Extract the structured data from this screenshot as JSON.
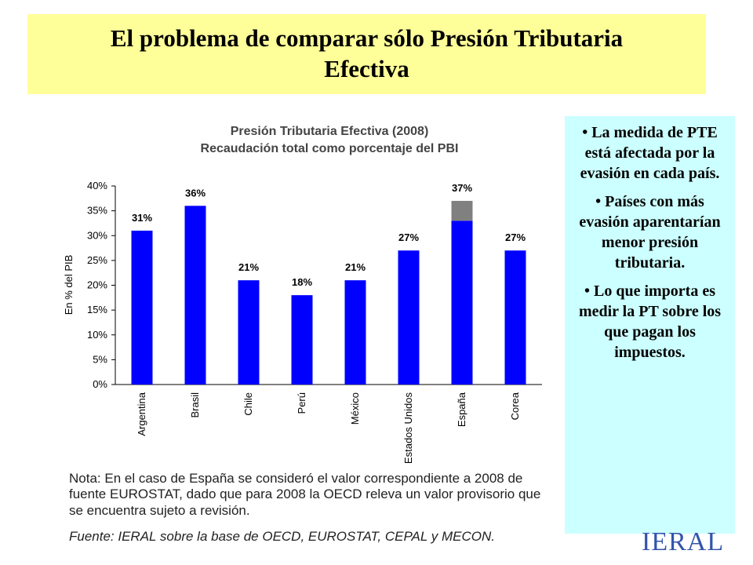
{
  "header": {
    "title": "El problema de comparar sólo Presión Tributaria Efectiva"
  },
  "chart_data": {
    "type": "bar",
    "title": "Presión Tributaria Efectiva (2008)",
    "subtitle": "Recaudación total como porcentaje del PBI",
    "y_label": "En % del PIB",
    "categories": [
      "Argentina",
      "Brasil",
      "Chile",
      "Perú",
      "México",
      "Estados Unidos",
      "España",
      "Corea"
    ],
    "series": [
      {
        "color": "#0000ff",
        "values": [
          31,
          36,
          21,
          18,
          21,
          27,
          33,
          27
        ]
      },
      {
        "color": "#808080",
        "values": [
          null,
          null,
          null,
          null,
          null,
          null,
          4,
          null
        ]
      }
    ],
    "values": [
      31,
      36,
      21,
      18,
      21,
      27,
      37,
      27
    ],
    "value_labels": [
      "31%",
      "36%",
      "21%",
      "18%",
      "21%",
      "27%",
      "37%",
      "27%"
    ],
    "ylim": [
      0,
      40
    ],
    "yticks": [
      {
        "value": 0,
        "label": "0%"
      },
      {
        "value": 5,
        "label": "5%"
      },
      {
        "value": 10,
        "label": "10%"
      },
      {
        "value": 15,
        "label": "15%"
      },
      {
        "value": 20,
        "label": "20%"
      },
      {
        "value": 25,
        "label": "25%"
      },
      {
        "value": 30,
        "label": "30%"
      },
      {
        "value": 35,
        "label": "35%"
      },
      {
        "value": 40,
        "label": "40%"
      }
    ]
  },
  "note": "Nota: En el caso de España se consideró el valor correspondiente a 2008 de fuente EUROSTAT, dado que para 2008 la OECD releva un valor provisorio que se encuentra sujeto a revisión.",
  "source": "Fuente: IERAL sobre la base de OECD, EUROSTAT, CEPAL y MECON.",
  "sidebar": {
    "bullets": [
      "• La medida de PTE está afectada por la evasión en cada país.",
      "• Países con más evasión aparentarían menor presión tributaria.",
      "• Lo que importa es medir la PT sobre los que pagan los impuestos."
    ]
  },
  "logo": "IERAL"
}
